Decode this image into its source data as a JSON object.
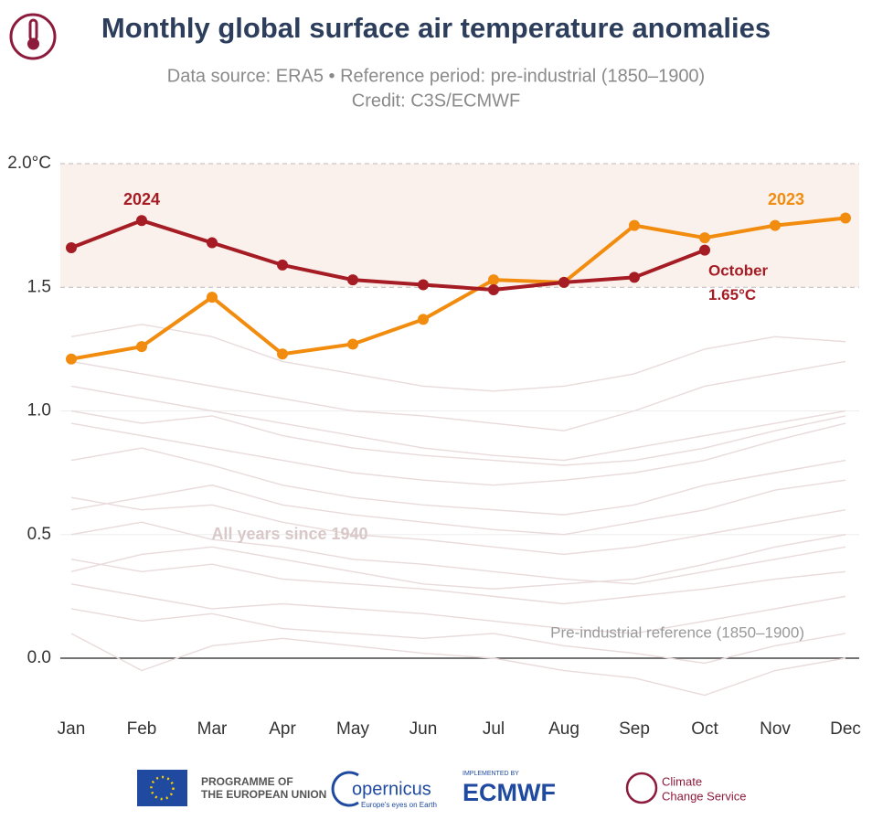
{
  "chart_data": {
    "type": "line",
    "title": "Monthly global surface air temperature anomalies",
    "subtitle": "Data source: ERA5 • Reference period: pre-industrial (1850–1900)",
    "credit": "Credit: C3S/ECMWF",
    "categories": [
      "Jan",
      "Feb",
      "Mar",
      "Apr",
      "May",
      "Jun",
      "Jul",
      "Aug",
      "Sep",
      "Oct",
      "Nov",
      "Dec"
    ],
    "ylim": [
      -0.2,
      2.0
    ],
    "yticks": [
      {
        "value": 0,
        "label": "0.0"
      },
      0.5,
      {
        "value": 1,
        "label": "1.0"
      },
      1.5,
      {
        "value": 2,
        "label": "2.0°C"
      }
    ],
    "band": [
      1.5,
      2.0
    ],
    "grid": true,
    "series": [
      {
        "name": "2023",
        "color": "#f28c0f",
        "values": [
          1.21,
          1.26,
          1.46,
          1.23,
          1.27,
          1.37,
          1.53,
          1.52,
          1.75,
          1.7,
          1.75,
          1.78
        ]
      },
      {
        "name": "2024",
        "color": "#a51c24",
        "values": [
          1.66,
          1.77,
          1.68,
          1.59,
          1.53,
          1.51,
          1.49,
          1.52,
          1.54,
          1.65,
          null,
          null
        ],
        "value_labels": [
          null,
          null,
          null,
          null,
          null,
          null,
          null,
          null,
          null,
          "1.65°C",
          null,
          null
        ]
      }
    ],
    "background": {
      "label": "All years since 1940",
      "color": "#e9dbdb",
      "lines": [
        [
          1.1,
          1.05,
          1.0,
          0.95,
          0.9,
          0.85,
          0.82,
          0.8,
          0.85,
          0.9,
          0.95,
          1.0
        ],
        [
          1.3,
          1.35,
          1.3,
          1.2,
          1.15,
          1.1,
          1.08,
          1.1,
          1.15,
          1.25,
          1.3,
          1.28
        ],
        [
          0.95,
          0.9,
          0.85,
          0.8,
          0.75,
          0.72,
          0.7,
          0.72,
          0.75,
          0.8,
          0.88,
          0.95
        ],
        [
          0.8,
          0.85,
          0.78,
          0.7,
          0.65,
          0.62,
          0.6,
          0.58,
          0.62,
          0.7,
          0.75,
          0.8
        ],
        [
          0.65,
          0.6,
          0.62,
          0.55,
          0.5,
          0.48,
          0.45,
          0.42,
          0.45,
          0.5,
          0.55,
          0.6
        ],
        [
          0.5,
          0.55,
          0.48,
          0.45,
          0.4,
          0.38,
          0.35,
          0.32,
          0.3,
          0.35,
          0.4,
          0.45
        ],
        [
          0.4,
          0.35,
          0.38,
          0.32,
          0.3,
          0.28,
          0.25,
          0.22,
          0.25,
          0.28,
          0.32,
          0.35
        ],
        [
          0.3,
          0.25,
          0.2,
          0.22,
          0.2,
          0.18,
          0.15,
          0.12,
          0.1,
          0.15,
          0.2,
          0.25
        ],
        [
          0.2,
          0.15,
          0.18,
          0.12,
          0.1,
          0.08,
          0.1,
          0.05,
          0.02,
          -0.02,
          0.05,
          0.1
        ],
        [
          0.1,
          -0.05,
          0.05,
          0.08,
          0.05,
          0.02,
          0.0,
          -0.05,
          -0.08,
          -0.15,
          -0.05,
          0.0
        ],
        [
          1.2,
          1.15,
          1.1,
          1.05,
          1.0,
          0.98,
          0.95,
          0.92,
          1.0,
          1.1,
          1.15,
          1.2
        ],
        [
          0.6,
          0.65,
          0.7,
          0.62,
          0.58,
          0.55,
          0.52,
          0.5,
          0.55,
          0.6,
          0.68,
          0.72
        ],
        [
          0.35,
          0.42,
          0.45,
          0.4,
          0.35,
          0.3,
          0.28,
          0.3,
          0.32,
          0.38,
          0.45,
          0.5
        ],
        [
          1.0,
          0.95,
          0.98,
          0.9,
          0.85,
          0.82,
          0.8,
          0.78,
          0.8,
          0.85,
          0.92,
          0.98
        ]
      ]
    },
    "annotations": [
      "2024",
      "2023",
      "October",
      "Pre-industrial reference (1850–1900)"
    ]
  },
  "footer": {
    "eu": [
      "PROGRAMME OF",
      "THE EUROPEAN UNION"
    ],
    "copernicus": "opernicus",
    "copernicus_tag": "Europe's eyes on Earth",
    "ecmwf_small": "IMPLEMENTED BY",
    "ecmwf": "ECMWF",
    "c3s": [
      "Climate",
      "Change Service"
    ]
  }
}
